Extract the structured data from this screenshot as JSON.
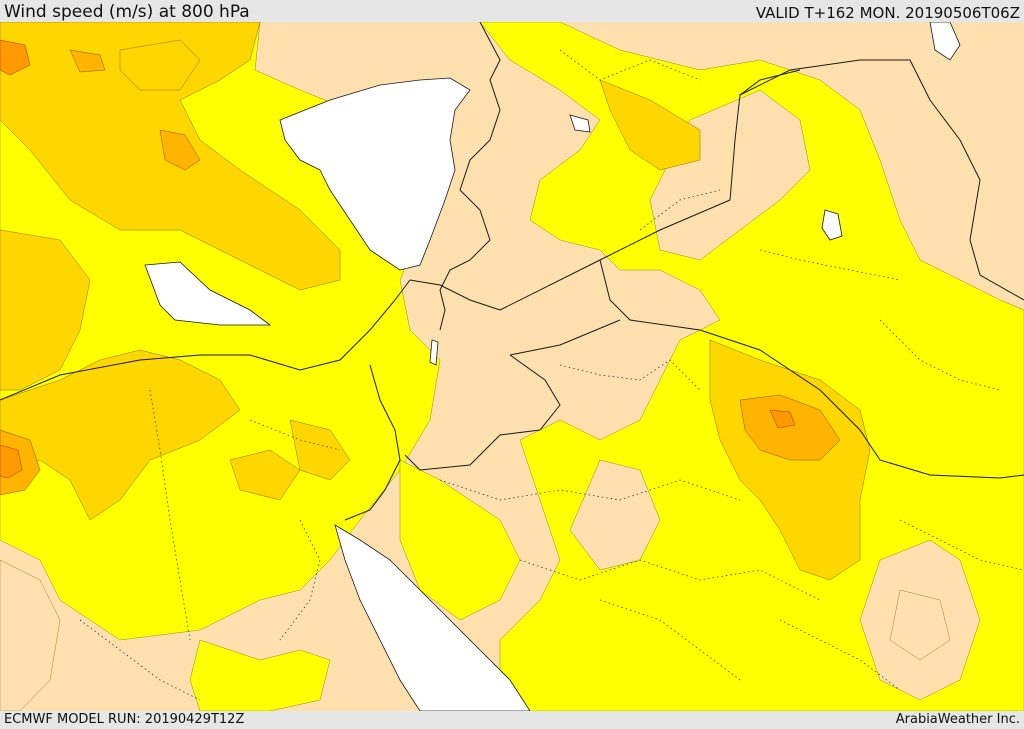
{
  "header": {
    "title": "Wind speed (m/s) at 800 hPa",
    "valid": "VALID T+162 MON. 20190506T06Z"
  },
  "footer": {
    "model_run": "ECMWF MODEL RUN: 20190429T12Z",
    "credit": "ArabiaWeather Inc."
  },
  "colors": {
    "background_land": "#fde0ae",
    "sea": "#ffffff",
    "level_low": "#ffff00",
    "level_mid": "#ffd700",
    "level_high": "#ffb400",
    "level_peak": "#ff9900",
    "border": "#1a1a1a"
  }
}
